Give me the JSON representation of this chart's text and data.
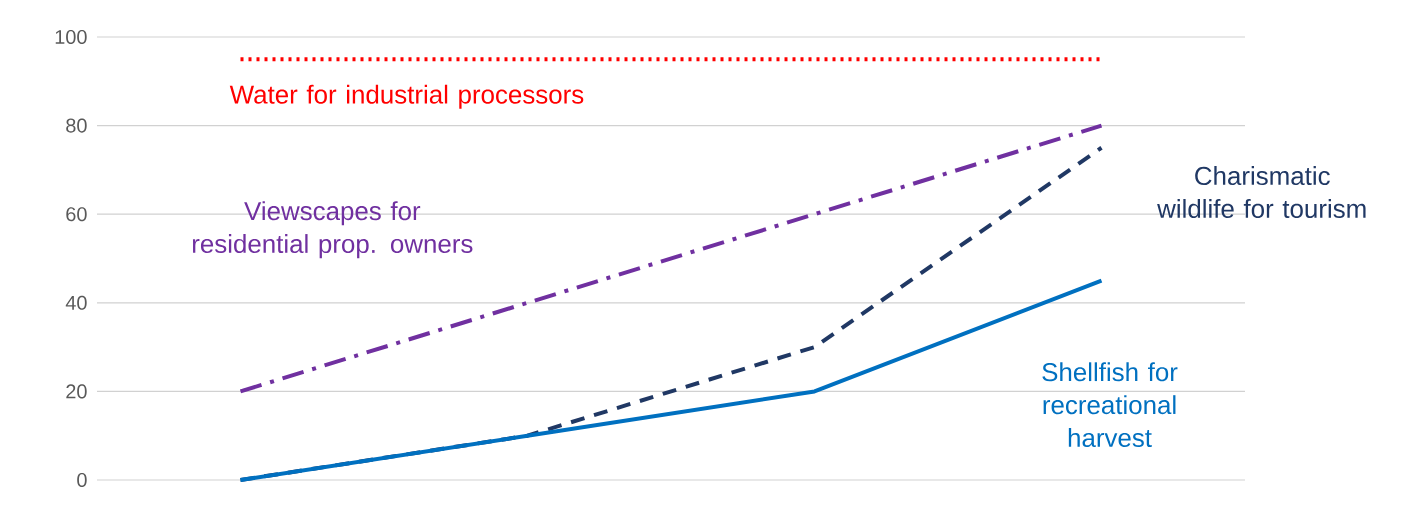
{
  "chart_data": {
    "type": "line",
    "categories": [
      null,
      null,
      null,
      null
    ],
    "ylim": [
      0,
      100
    ],
    "yticks": [
      0,
      20,
      40,
      60,
      80,
      100
    ],
    "grid": "y",
    "marker": "none",
    "tick_labels": "y",
    "series": [
      {
        "name": "Water for industrial processors",
        "color": "#ff0000",
        "line_style": "dotted",
        "values": [
          95,
          95,
          95,
          95
        ]
      },
      {
        "name": "Viewscapes for residential prop. owners",
        "color": "#7030a0",
        "line_style": "dashdot",
        "values": [
          20,
          40,
          60,
          80
        ]
      },
      {
        "name": "Charismatic wildlife for tourism",
        "color": "#203864",
        "line_style": "dashed",
        "values": [
          0,
          10,
          30,
          75
        ]
      },
      {
        "name": "Shellfish for recreational harvest",
        "color": "#0070c0",
        "line_style": "solid",
        "values": [
          0,
          10,
          20,
          45
        ]
      }
    ]
  }
}
